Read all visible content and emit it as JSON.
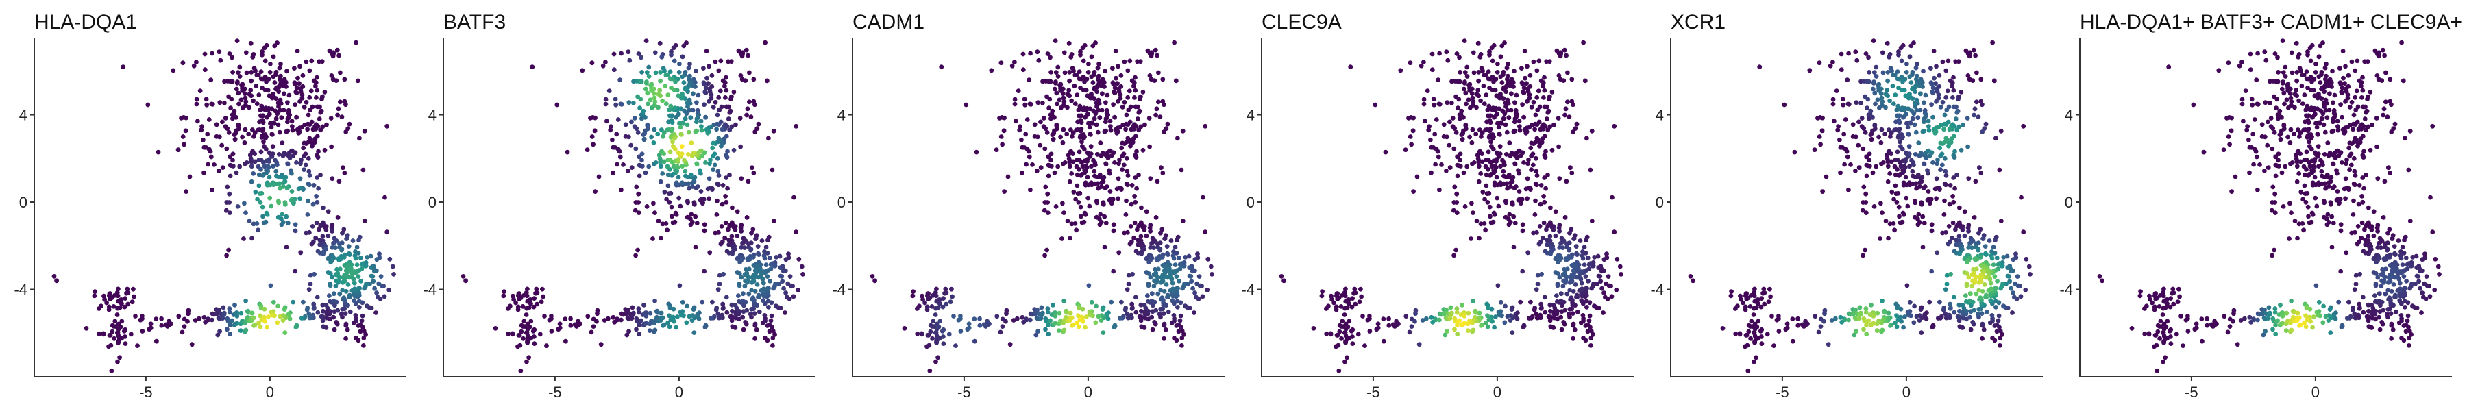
{
  "colors": {
    "viridis": [
      "#440154",
      "#3b528b",
      "#21918c",
      "#5ec962",
      "#fde725"
    ]
  },
  "chart_data": [
    {
      "type": "scatter",
      "title": "HLA-DQA1",
      "xlabel": "",
      "ylabel": "",
      "xlim": [
        -9.5,
        5.5
      ],
      "ylim": [
        -8.0,
        7.5
      ],
      "x_ticks": [
        -5,
        0
      ],
      "y_ticks": [
        -4,
        0,
        4
      ],
      "grid": false,
      "color_scale": "viridis",
      "expression_hotspots": [
        {
          "x": 0.3,
          "y": 0.2,
          "level": 0.7
        },
        {
          "x": 3.2,
          "y": -3.2,
          "level": 0.6
        },
        {
          "x": 0.0,
          "y": -5.5,
          "level": 1.0
        }
      ]
    },
    {
      "type": "scatter",
      "title": "BATF3",
      "xlabel": "",
      "ylabel": "",
      "xlim": [
        -9.5,
        5.5
      ],
      "ylim": [
        -8.0,
        7.5
      ],
      "x_ticks": [
        -5,
        0
      ],
      "y_ticks": [
        -4,
        0,
        4
      ],
      "grid": false,
      "color_scale": "viridis",
      "expression_hotspots": [
        {
          "x": 0.2,
          "y": 2.5,
          "level": 1.0
        },
        {
          "x": -0.8,
          "y": 5.0,
          "level": 0.8
        },
        {
          "x": 3.0,
          "y": -3.5,
          "level": 0.4
        },
        {
          "x": 0.0,
          "y": -5.5,
          "level": 0.5
        }
      ]
    },
    {
      "type": "scatter",
      "title": "CADM1",
      "xlabel": "",
      "ylabel": "",
      "xlim": [
        -9.5,
        5.5
      ],
      "ylim": [
        -8.0,
        7.5
      ],
      "x_ticks": [
        -5,
        0
      ],
      "y_ticks": [
        -4,
        0,
        4
      ],
      "grid": false,
      "color_scale": "viridis",
      "expression_hotspots": [
        {
          "x": -0.4,
          "y": -5.5,
          "level": 1.0
        },
        {
          "x": 3.2,
          "y": -3.5,
          "level": 0.4
        },
        {
          "x": -5.0,
          "y": -5.5,
          "level": 0.3
        }
      ]
    },
    {
      "type": "scatter",
      "title": "CLEC9A",
      "xlabel": "",
      "ylabel": "",
      "xlim": [
        -9.5,
        5.5
      ],
      "ylim": [
        -8.0,
        7.5
      ],
      "x_ticks": [
        -5,
        0
      ],
      "y_ticks": [
        -4,
        0,
        4
      ],
      "grid": false,
      "color_scale": "viridis",
      "expression_hotspots": [
        {
          "x": -1.4,
          "y": -5.5,
          "level": 1.0
        },
        {
          "x": 2.5,
          "y": -3.0,
          "level": 0.3
        }
      ]
    },
    {
      "type": "scatter",
      "title": "XCR1",
      "xlabel": "",
      "ylabel": "",
      "xlim": [
        -9.5,
        5.5
      ],
      "ylim": [
        -8.0,
        7.5
      ],
      "x_ticks": [
        -5,
        0
      ],
      "y_ticks": [
        -4,
        0,
        4
      ],
      "grid": false,
      "color_scale": "viridis",
      "expression_hotspots": [
        {
          "x": 2.8,
          "y": -3.5,
          "level": 0.95
        },
        {
          "x": 1.5,
          "y": 3.0,
          "level": 0.6
        },
        {
          "x": -0.2,
          "y": 5.0,
          "level": 0.5
        },
        {
          "x": -1.5,
          "y": -5.5,
          "level": 0.9
        }
      ]
    },
    {
      "type": "scatter",
      "title": "HLA-DQA1+ BATF3+ CADM1+ CLEC9A+",
      "xlabel": "",
      "ylabel": "",
      "xlim": [
        -9.5,
        5.5
      ],
      "ylim": [
        -8.0,
        7.5
      ],
      "x_ticks": [
        -5,
        0
      ],
      "y_ticks": [
        -4,
        0,
        4
      ],
      "grid": false,
      "color_scale": "viridis",
      "expression_hotspots": [
        {
          "x": -0.6,
          "y": -5.5,
          "level": 1.0
        },
        {
          "x": 3.0,
          "y": -3.5,
          "level": 0.25
        }
      ]
    }
  ]
}
